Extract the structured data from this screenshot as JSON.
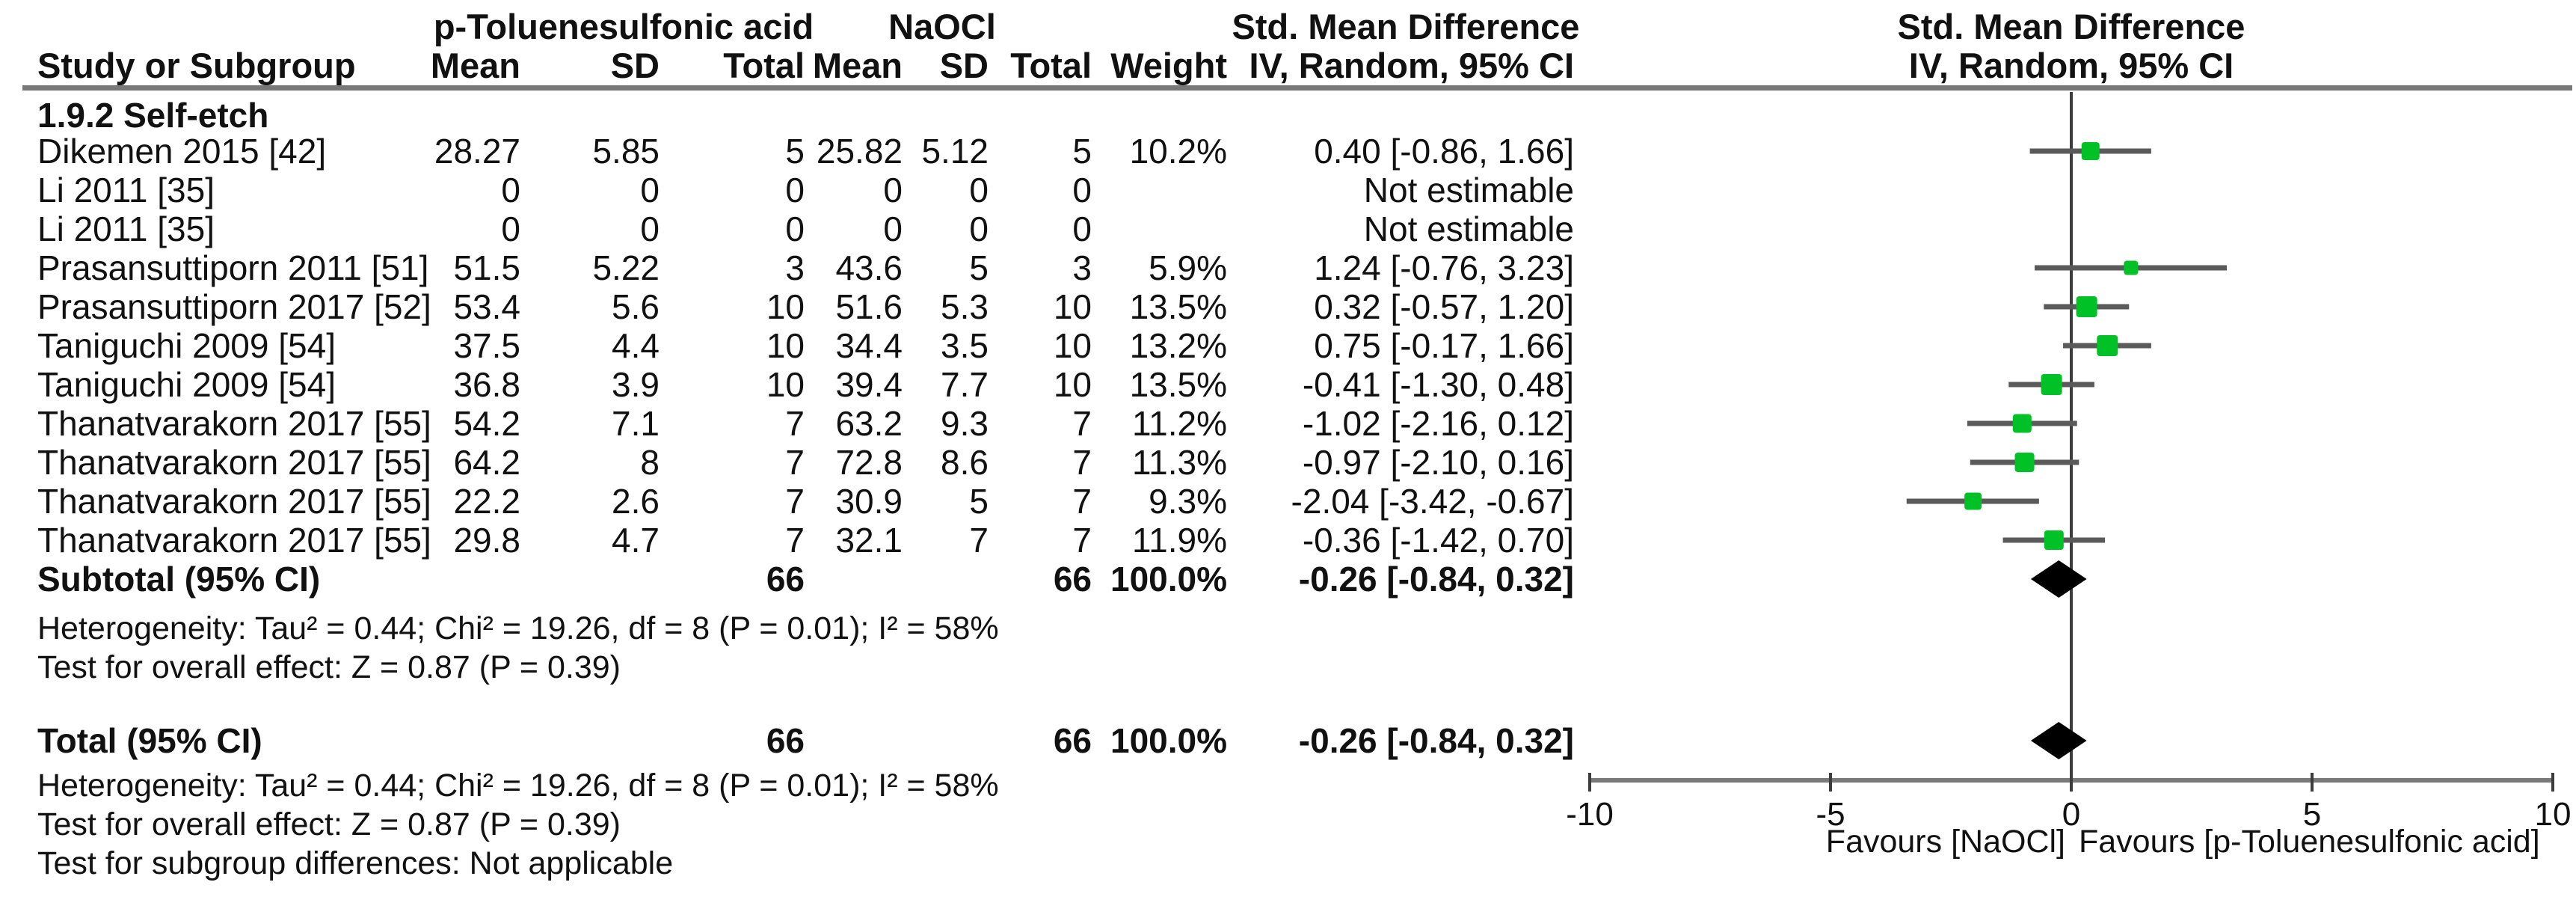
{
  "header": {
    "study": "Study or Subgroup",
    "group1": "p-Toluenesulfonic acid",
    "group2": "NaOCl",
    "mean": "Mean",
    "sd": "SD",
    "total": "Total",
    "weight": "Weight",
    "smd": "Std. Mean Difference",
    "method": "IV, Random, 95% CI"
  },
  "table": {
    "subgroup_label": "1.9.2 Self-etch",
    "rows": [
      {
        "study": "Dikemen 2015 [42]",
        "m1": "28.27",
        "sd1": "5.85",
        "t1": "5",
        "m2": "25.82",
        "sd2": "5.12",
        "t2": "5",
        "wt": "10.2%",
        "ci": "0.40 [-0.86, 1.66]"
      },
      {
        "study": "Li 2011 [35]",
        "m1": "0",
        "sd1": "0",
        "t1": "0",
        "m2": "0",
        "sd2": "0",
        "t2": "0",
        "wt": "",
        "ci": "Not estimable"
      },
      {
        "study": "Li 2011 [35]",
        "m1": "0",
        "sd1": "0",
        "t1": "0",
        "m2": "0",
        "sd2": "0",
        "t2": "0",
        "wt": "",
        "ci": "Not estimable"
      },
      {
        "study": "Prasansuttiporn 2011 [51]",
        "m1": "51.5",
        "sd1": "5.22",
        "t1": "3",
        "m2": "43.6",
        "sd2": "5",
        "t2": "3",
        "wt": "5.9%",
        "ci": "1.24 [-0.76, 3.23]"
      },
      {
        "study": "Prasansuttiporn 2017 [52]",
        "m1": "53.4",
        "sd1": "5.6",
        "t1": "10",
        "m2": "51.6",
        "sd2": "5.3",
        "t2": "10",
        "wt": "13.5%",
        "ci": "0.32 [-0.57, 1.20]"
      },
      {
        "study": "Taniguchi 2009 [54]",
        "m1": "37.5",
        "sd1": "4.4",
        "t1": "10",
        "m2": "34.4",
        "sd2": "3.5",
        "t2": "10",
        "wt": "13.2%",
        "ci": "0.75 [-0.17, 1.66]"
      },
      {
        "study": "Taniguchi 2009 [54]",
        "m1": "36.8",
        "sd1": "3.9",
        "t1": "10",
        "m2": "39.4",
        "sd2": "7.7",
        "t2": "10",
        "wt": "13.5%",
        "ci": "-0.41 [-1.30, 0.48]"
      },
      {
        "study": "Thanatvarakorn 2017 [55]",
        "m1": "54.2",
        "sd1": "7.1",
        "t1": "7",
        "m2": "63.2",
        "sd2": "9.3",
        "t2": "7",
        "wt": "11.2%",
        "ci": "-1.02 [-2.16, 0.12]"
      },
      {
        "study": "Thanatvarakorn 2017 [55]",
        "m1": "64.2",
        "sd1": "8",
        "t1": "7",
        "m2": "72.8",
        "sd2": "8.6",
        "t2": "7",
        "wt": "11.3%",
        "ci": "-0.97 [-2.10, 0.16]"
      },
      {
        "study": "Thanatvarakorn 2017 [55]",
        "m1": "22.2",
        "sd1": "2.6",
        "t1": "7",
        "m2": "30.9",
        "sd2": "5",
        "t2": "7",
        "wt": "9.3%",
        "ci": "-2.04 [-3.42, -0.67]"
      },
      {
        "study": "Thanatvarakorn 2017 [55]",
        "m1": "29.8",
        "sd1": "4.7",
        "t1": "7",
        "m2": "32.1",
        "sd2": "7",
        "t2": "7",
        "wt": "11.9%",
        "ci": "-0.36 [-1.42, 0.70]"
      }
    ],
    "subtotal": {
      "label": "Subtotal (95% CI)",
      "t1": "66",
      "t2": "66",
      "wt": "100.0%",
      "ci": "-0.26 [-0.84, 0.32]"
    },
    "total": {
      "label": "Total (95% CI)",
      "t1": "66",
      "t2": "66",
      "wt": "100.0%",
      "ci": "-0.26 [-0.84, 0.32]"
    }
  },
  "footers": {
    "het_subtotal": "Heterogeneity: Tau² = 0.44; Chi² = 19.26, df = 8 (P = 0.01); I² = 58%",
    "effect_subtotal": "Test for overall effect: Z = 0.87 (P = 0.39)",
    "het_total": "Heterogeneity: Tau² = 0.44; Chi² = 19.26, df = 8 (P = 0.01); I² = 58%",
    "effect_total": "Test for overall effect: Z = 0.87 (P = 0.39)",
    "subgroup_differences": "Test for subgroup differences: Not applicable"
  },
  "chart_data": {
    "type": "scatter",
    "subtype": "forest-plot",
    "title": "Std. Mean Difference",
    "method_label": "IV, Random, 95% CI",
    "x_axis": {
      "min": -10,
      "max": 10,
      "ticks": [
        -10,
        -5,
        0,
        5,
        10
      ]
    },
    "favours_left": "Favours [NaOCl]",
    "favours_right": "Favours [p-Toluenesulfonic acid]",
    "marker_color": "#00c226",
    "ci_bar_color": "#5a5a5a",
    "diamond_color": "#000000",
    "studies": [
      {
        "label": "Dikemen 2015 [42]",
        "est": 0.4,
        "lo": -0.86,
        "hi": 1.66,
        "weight": 10.2,
        "estimable": true
      },
      {
        "label": "Li 2011 [35]",
        "estimable": false
      },
      {
        "label": "Li 2011 [35]",
        "estimable": false
      },
      {
        "label": "Prasansuttiporn 2011 [51]",
        "est": 1.24,
        "lo": -0.76,
        "hi": 3.23,
        "weight": 5.9,
        "estimable": true
      },
      {
        "label": "Prasansuttiporn 2017 [52]",
        "est": 0.32,
        "lo": -0.57,
        "hi": 1.2,
        "weight": 13.5,
        "estimable": true
      },
      {
        "label": "Taniguchi 2009 [54]",
        "est": 0.75,
        "lo": -0.17,
        "hi": 1.66,
        "weight": 13.2,
        "estimable": true
      },
      {
        "label": "Taniguchi 2009 [54]",
        "est": -0.41,
        "lo": -1.3,
        "hi": 0.48,
        "weight": 13.5,
        "estimable": true
      },
      {
        "label": "Thanatvarakorn 2017 [55]",
        "est": -1.02,
        "lo": -2.16,
        "hi": 0.12,
        "weight": 11.2,
        "estimable": true
      },
      {
        "label": "Thanatvarakorn 2017 [55]",
        "est": -0.97,
        "lo": -2.1,
        "hi": 0.16,
        "weight": 11.3,
        "estimable": true
      },
      {
        "label": "Thanatvarakorn 2017 [55]",
        "est": -2.04,
        "lo": -3.42,
        "hi": -0.67,
        "weight": 9.3,
        "estimable": true
      },
      {
        "label": "Thanatvarakorn 2017 [55]",
        "est": -0.36,
        "lo": -1.42,
        "hi": 0.7,
        "weight": 11.9,
        "estimable": true
      }
    ],
    "subtotal": {
      "est": -0.26,
      "lo": -0.84,
      "hi": 0.32
    },
    "total": {
      "est": -0.26,
      "lo": -0.84,
      "hi": 0.32
    }
  }
}
